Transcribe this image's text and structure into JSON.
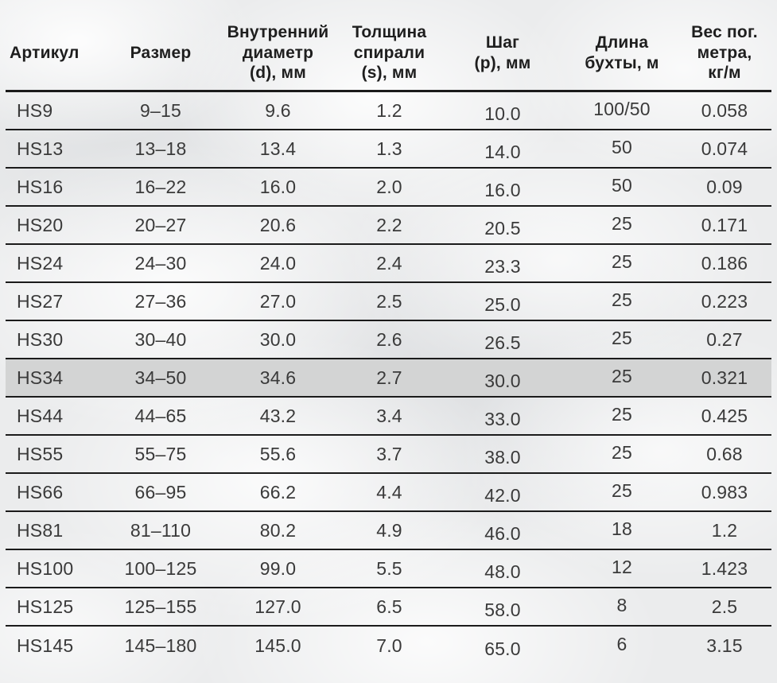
{
  "table": {
    "columns": [
      {
        "key": "article",
        "label": "Артикул"
      },
      {
        "key": "size",
        "label": "Размер"
      },
      {
        "key": "inner_diameter",
        "label": "Внутренний\nдиаметр\n(d), мм"
      },
      {
        "key": "spiral_thickness",
        "label": "Толщина\nспирали\n(s), мм"
      },
      {
        "key": "pitch",
        "label": "Шаг\n(p), мм"
      },
      {
        "key": "coil_length",
        "label": "Длина\nбухты, м"
      },
      {
        "key": "weight_per_meter",
        "label": "Вес пог.\nметра,\nкг/м"
      }
    ],
    "rows": [
      [
        "HS9",
        "9–15",
        "9.6",
        "1.2",
        "10.0",
        "100/50",
        "0.058"
      ],
      [
        "HS13",
        "13–18",
        "13.4",
        "1.3",
        "14.0",
        "50",
        "0.074"
      ],
      [
        "HS16",
        "16–22",
        "16.0",
        "2.0",
        "16.0",
        "50",
        "0.09"
      ],
      [
        "HS20",
        "20–27",
        "20.6",
        "2.2",
        "20.5",
        "25",
        "0.171"
      ],
      [
        "HS24",
        "24–30",
        "24.0",
        "2.4",
        "23.3",
        "25",
        "0.186"
      ],
      [
        "HS27",
        "27–36",
        "27.0",
        "2.5",
        "25.0",
        "25",
        "0.223"
      ],
      [
        "HS30",
        "30–40",
        "30.0",
        "2.6",
        "26.5",
        "25",
        "0.27"
      ],
      [
        "HS34",
        "34–50",
        "34.6",
        "2.7",
        "30.0",
        "25",
        "0.321"
      ],
      [
        "HS44",
        "44–65",
        "43.2",
        "3.4",
        "33.0",
        "25",
        "0.425"
      ],
      [
        "HS55",
        "55–75",
        "55.6",
        "3.7",
        "38.0",
        "25",
        "0.68"
      ],
      [
        "HS66",
        "66–95",
        "66.2",
        "4.4",
        "42.0",
        "25",
        "0.983"
      ],
      [
        "HS81",
        "81–110",
        "80.2",
        "4.9",
        "46.0",
        "18",
        "1.2"
      ],
      [
        "HS100",
        "100–125",
        "99.0",
        "5.5",
        "48.0",
        "12",
        "1.423"
      ],
      [
        "HS125",
        "125–155",
        "127.0",
        "6.5",
        "58.0",
        "8",
        "2.5"
      ],
      [
        "HS145",
        "145–180",
        "145.0",
        "7.0",
        "65.0",
        "6",
        "3.15"
      ]
    ],
    "highlighted_row_index": 7,
    "highlighted_row_article": "HS34"
  },
  "colors": {
    "bg": "#ebeced",
    "line": "#1b1b1b",
    "header_text": "#1e1e1e",
    "body_text": "#3a3a3a",
    "row_highlight": "#d3d4d4"
  }
}
